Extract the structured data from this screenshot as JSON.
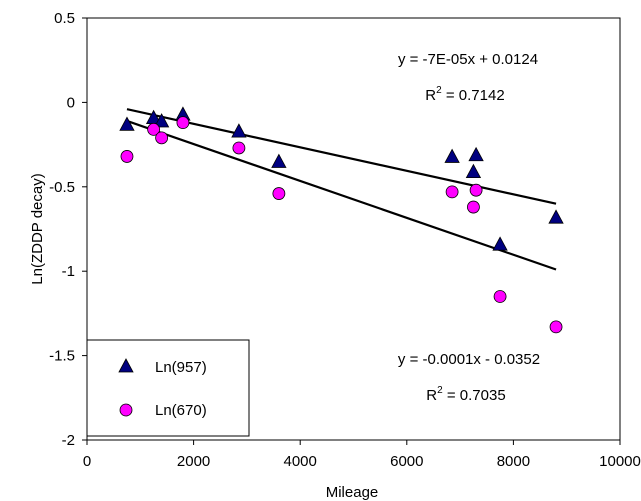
{
  "chart_data": {
    "type": "scatter",
    "xlabel": "Mileage",
    "ylabel": "Ln(ZDDP decay)",
    "xlim": [
      0,
      10000
    ],
    "ylim": [
      -2,
      0.5
    ],
    "x_ticks": [
      0,
      2000,
      4000,
      6000,
      8000,
      10000
    ],
    "y_ticks": [
      0.5,
      0,
      -0.5,
      -1,
      -1.5,
      -2
    ],
    "x_tick_labels": [
      "0",
      "2000",
      "4000",
      "6000",
      "8000",
      "10000"
    ],
    "y_tick_labels": [
      "0.5",
      "0",
      "-0.5",
      "-1",
      "-1.5",
      "-2"
    ],
    "grid": false,
    "legend_position": "bottom-left",
    "series": [
      {
        "name": "Ln(957)",
        "marker": "triangle",
        "color": "#000080",
        "points": [
          [
            750,
            -0.13
          ],
          [
            1250,
            -0.09
          ],
          [
            1400,
            -0.11
          ],
          [
            1800,
            -0.07
          ],
          [
            2850,
            -0.17
          ],
          [
            3600,
            -0.35
          ],
          [
            6850,
            -0.32
          ],
          [
            7250,
            -0.41
          ],
          [
            7300,
            -0.31
          ],
          [
            7750,
            -0.84
          ],
          [
            8800,
            -0.68
          ]
        ],
        "trendline": {
          "x_range": [
            750,
            8800
          ],
          "y_range": [
            -0.04,
            -0.6
          ]
        },
        "equation": "y = -7E-05x + 0.0124",
        "r2_prefix": "R",
        "r2_sup": "2",
        "r2_value": " = 0.7142"
      },
      {
        "name": "Ln(670)",
        "marker": "circle",
        "color": "#ff00ff",
        "points": [
          [
            750,
            -0.32
          ],
          [
            1250,
            -0.16
          ],
          [
            1400,
            -0.21
          ],
          [
            1800,
            -0.12
          ],
          [
            2850,
            -0.27
          ],
          [
            3600,
            -0.54
          ],
          [
            6850,
            -0.53
          ],
          [
            7250,
            -0.62
          ],
          [
            7300,
            -0.52
          ],
          [
            7750,
            -1.15
          ],
          [
            8800,
            -1.33
          ]
        ],
        "trendline": {
          "x_range": [
            750,
            8800
          ],
          "y_range": [
            -0.11,
            -0.99
          ]
        },
        "equation": "y = -0.0001x - 0.0352",
        "r2_prefix": "R",
        "r2_sup": "2",
        "r2_value": " = 0.7035"
      }
    ]
  }
}
